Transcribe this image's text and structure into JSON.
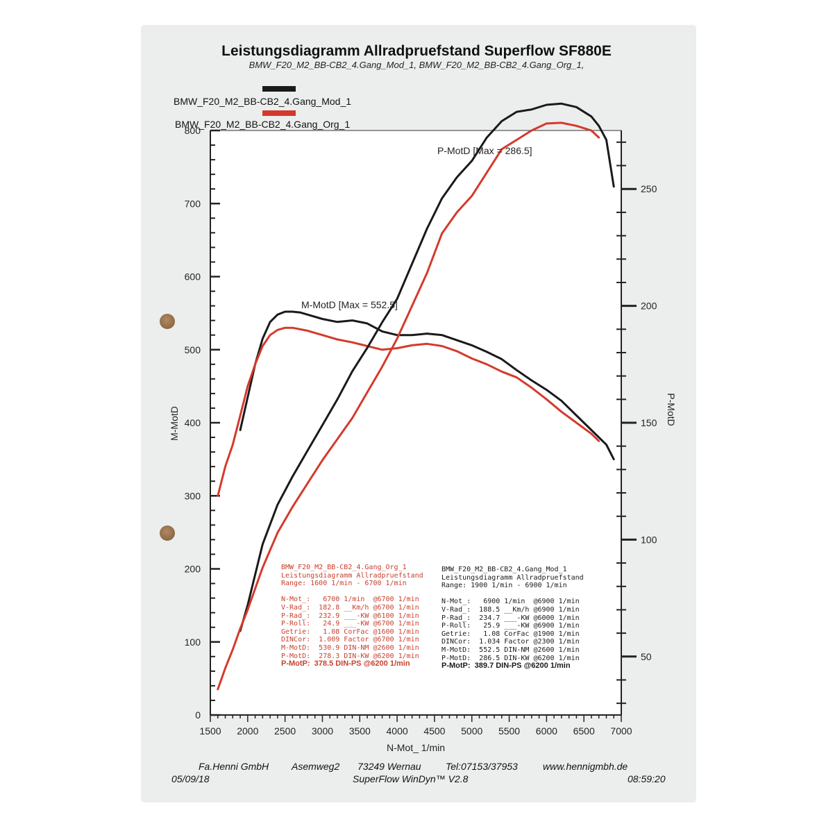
{
  "header": {
    "title": "Leistungsdiagramm Allradpruefstand Superflow SF880E",
    "subtitle": "BMW_F20_M2_BB-CB2_4.Gang_Mod_1, BMW_F20_M2_BB-CB2_4.Gang_Org_1,"
  },
  "legend": [
    {
      "label": "BMW_F20_M2_BB-CB2_4.Gang_Mod_1",
      "color": "#1a1a1a"
    },
    {
      "label": "BMW_F20_M2_BB-CB2_4.Gang_Org_1",
      "color": "#d43a2c"
    }
  ],
  "chart_data": {
    "type": "line",
    "xlabel": "N-Mot_ 1/min",
    "ylabel_left": "M-MotD",
    "ylabel_right": "P-MotD",
    "xlim": [
      1500,
      7000
    ],
    "ylim_left": [
      0,
      800
    ],
    "ylim_right": [
      25,
      275
    ],
    "x_ticks": [
      "1500",
      "2000",
      "2500",
      "3000",
      "3500",
      "4000",
      "4500",
      "5000",
      "5500",
      "6000",
      "6500",
      "7000"
    ],
    "y_ticks_left": [
      "0",
      "100",
      "200",
      "300",
      "400",
      "500",
      "600",
      "700",
      "800"
    ],
    "y_ticks_right": [
      "50",
      "100",
      "150",
      "200",
      "250"
    ],
    "annotations": [
      "P-MotD [Max = 286.5]",
      "M-MotD [Max = 552.5]"
    ],
    "series": [
      {
        "name": "BMW_F20_M2_BB-CB2_4.Gang_Mod_1",
        "quantity": "M-MotD",
        "axis": "left",
        "color": "#1a1a1a",
        "x": [
          1900,
          2000,
          2100,
          2200,
          2300,
          2400,
          2500,
          2600,
          2700,
          2800,
          3000,
          3200,
          3400,
          3600,
          3800,
          4000,
          4200,
          4400,
          4600,
          4800,
          5000,
          5200,
          5400,
          5600,
          5800,
          6000,
          6200,
          6400,
          6600,
          6800,
          6900
        ],
        "y": [
          390,
          435,
          480,
          515,
          538,
          548,
          552,
          552,
          551,
          548,
          542,
          538,
          540,
          536,
          525,
          520,
          520,
          522,
          520,
          513,
          506,
          497,
          487,
          472,
          458,
          445,
          430,
          410,
          390,
          370,
          350
        ]
      },
      {
        "name": "BMW_F20_M2_BB-CB2_4.Gang_Org_1",
        "quantity": "M-MotD",
        "axis": "left",
        "color": "#d43a2c",
        "x": [
          1600,
          1700,
          1800,
          1900,
          2000,
          2100,
          2200,
          2300,
          2400,
          2500,
          2600,
          2800,
          3000,
          3200,
          3400,
          3600,
          3800,
          4000,
          4200,
          4400,
          4600,
          4800,
          5000,
          5200,
          5400,
          5600,
          5800,
          6000,
          6200,
          6400,
          6600,
          6700
        ],
        "y": [
          300,
          340,
          370,
          410,
          450,
          480,
          505,
          520,
          527,
          530,
          530,
          526,
          520,
          514,
          510,
          505,
          500,
          502,
          506,
          508,
          505,
          498,
          488,
          480,
          470,
          462,
          448,
          432,
          415,
          400,
          385,
          375
        ]
      },
      {
        "name": "BMW_F20_M2_BB-CB2_4.Gang_Mod_1",
        "quantity": "P-MotD",
        "axis": "right",
        "color": "#1a1a1a",
        "x": [
          1900,
          2000,
          2200,
          2400,
          2600,
          2800,
          3000,
          3200,
          3400,
          3600,
          3800,
          4000,
          4200,
          4400,
          4600,
          4800,
          5000,
          5200,
          5400,
          5600,
          5800,
          6000,
          6200,
          6400,
          6600,
          6700,
          6800,
          6900
        ],
        "y": [
          61,
          72,
          98,
          115,
          127,
          138,
          149,
          160,
          172,
          182,
          193,
          203,
          218,
          233,
          246,
          255,
          262,
          272,
          279,
          283,
          284,
          286,
          286.5,
          285,
          281,
          277,
          271,
          251
        ]
      },
      {
        "name": "BMW_F20_M2_BB-CB2_4.Gang_Org_1",
        "quantity": "P-MotD",
        "axis": "right",
        "color": "#d43a2c",
        "x": [
          1600,
          1700,
          1800,
          1900,
          2000,
          2200,
          2400,
          2600,
          2800,
          3000,
          3200,
          3400,
          3600,
          3800,
          4000,
          4200,
          4400,
          4600,
          4800,
          5000,
          5200,
          5400,
          5600,
          5800,
          6000,
          6200,
          6400,
          6600,
          6700
        ],
        "y": [
          36,
          45,
          53,
          62,
          70,
          88,
          103,
          114,
          124,
          134,
          143,
          152,
          163,
          174,
          186,
          200,
          214,
          231,
          240,
          247,
          257,
          267,
          271,
          275,
          278,
          278.3,
          277,
          275,
          272
        ]
      }
    ]
  },
  "box_org": {
    "lines": [
      "BMW_F20_M2_BB-CB2_4.Gang_Org_1",
      "Leistungsdiagramm Allradpruefstand",
      "Range: 1600 1/min - 6700 1/min",
      "",
      "N-Mot_:   6700 1/min  @6700 1/min",
      "V-Rad_:  182.8 __Km/h @6700 1/min",
      "P-Rad_:  232.9 ___-KW @6100 1/min",
      "P-Roll:   24.9 ___-KW @6700 1/min",
      "Getrie:   1.08 CorFac @1600 1/min",
      "DINCor:  1.009 Factor @6700 1/min",
      "M-MotD:  530.9 DIN-NM @2600 1/min",
      "P-MotD:  278.3 DIN-KW @6200 1/min"
    ],
    "summary": "P-MotP:  378.5 DIN-PS @6200 1/min",
    "color": "#c8402f"
  },
  "box_mod": {
    "lines": [
      "BMW_F20_M2_BB-CB2_4.Gang_Mod_1",
      "Leistungsdiagramm Allradpruefstand",
      "Range: 1900 1/min - 6900 1/min",
      "",
      "N-Mot_:   6900 1/min  @6900 1/min",
      "V-Rad_:  188.5 __Km/h @6900 1/min",
      "P-Rad_:  234.7 ___-KW @6000 1/min",
      "P-Roll:   25.9 ___-KW @6900 1/min",
      "Getrie:   1.08 CorFac @1900 1/min",
      "DINCor:  1.034 Factor @2300 1/min",
      "M-MotD:  552.5 DIN-NM @2600 1/min",
      "P-MotD:  286.5 DIN-KW @6200 1/min"
    ],
    "summary": "P-MotP:  389.7 DIN-PS @6200 1/min",
    "color": "#1a1a1a"
  },
  "footer": {
    "company": "Fa.Henni GmbH",
    "street": "Asemweg2",
    "city": "73249 Wernau",
    "phone": "Tel:07153/37953",
    "web": "www.hennigmbh.de",
    "date": "05/09/18",
    "software": "SuperFlow WinDyn™ V2.8",
    "time": "08:59:20"
  }
}
